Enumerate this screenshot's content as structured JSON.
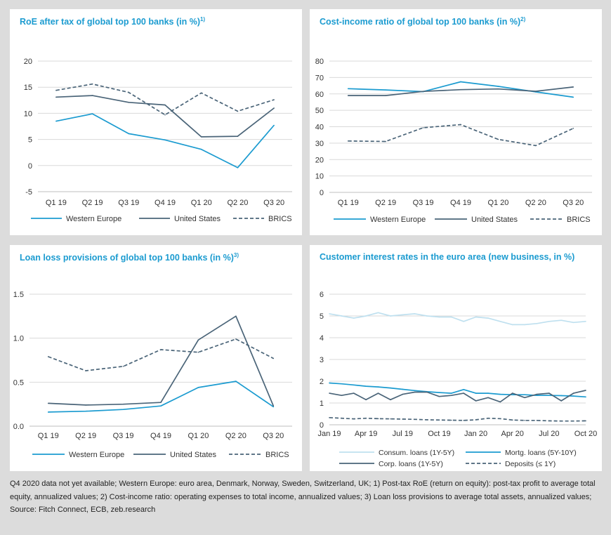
{
  "colors": {
    "western_europe": "#1b9bd0",
    "united_states": "#4a6478",
    "brics": "#4a6478",
    "consum": "#bfe0ef",
    "mortg": "#1b9bd0",
    "corp": "#4a6478",
    "deposits": "#4a6478",
    "grid": "#d9d9d9",
    "axis": "#bfbfbf",
    "title": "#1b9bd0"
  },
  "footnote": "Q4 2020 data not yet available; Western Europe: euro area, Denmark, Norway, Sweden, Switzerland, UK; 1) Post-tax RoE (return on equity): post-tax profit to average total equity, annualized values; 2) Cost-income ratio: operating expenses to total income, annualized values; 3) Loan loss provisions to average total assets, annualized values; Source: Fitch Connect, ECB, zeb.research",
  "chart_data": [
    {
      "type": "line",
      "title": "RoE after tax of global top 100 banks (in %)",
      "title_sup": "1)",
      "categories": [
        "Q1 19",
        "Q2 19",
        "Q3 19",
        "Q4 19",
        "Q1 20",
        "Q2 20",
        "Q3 20"
      ],
      "ylim": [
        -5,
        20
      ],
      "yticks": [
        "-5",
        "0",
        "5",
        "10",
        "15",
        "20"
      ],
      "ytick_values": [
        -5,
        0,
        5,
        10,
        15,
        20
      ],
      "grid": true,
      "legend": "bottom",
      "series": [
        {
          "name": "Western Europe",
          "values": [
            8.5,
            9.9,
            6.1,
            4.9,
            3.1,
            -0.4,
            7.7
          ],
          "style": "solid",
          "color_key": "western_europe"
        },
        {
          "name": "United States",
          "values": [
            13.1,
            13.4,
            12.1,
            11.6,
            5.5,
            5.6,
            11.0
          ],
          "style": "solid",
          "color_key": "united_states"
        },
        {
          "name": "BRICS",
          "values": [
            14.4,
            15.6,
            14.0,
            9.7,
            13.9,
            10.4,
            12.6
          ],
          "style": "dashed",
          "color_key": "brics"
        }
      ]
    },
    {
      "type": "line",
      "title": "Cost-income ratio of global top 100 banks (in %)",
      "title_sup": "2)",
      "categories": [
        "Q1 19",
        "Q2 19",
        "Q3 19",
        "Q4 19",
        "Q1 20",
        "Q2 20",
        "Q3 20"
      ],
      "ylim": [
        0,
        80
      ],
      "yticks": [
        "0",
        "10",
        "20",
        "30",
        "40",
        "50",
        "60",
        "70",
        "80"
      ],
      "ytick_values": [
        0,
        10,
        20,
        30,
        40,
        50,
        60,
        70,
        80
      ],
      "grid": true,
      "legend": "bottom",
      "series": [
        {
          "name": "Western Europe",
          "values": [
            63.2,
            62.4,
            61.4,
            67.4,
            64.6,
            61.2,
            58.0
          ],
          "style": "solid",
          "color_key": "western_europe"
        },
        {
          "name": "United States",
          "values": [
            59.0,
            59.0,
            61.5,
            62.6,
            63.0,
            61.6,
            64.2
          ],
          "style": "solid",
          "color_key": "united_states"
        },
        {
          "name": "BRICS",
          "values": [
            31.3,
            31.0,
            39.4,
            41.3,
            32.3,
            28.5,
            39.0
          ],
          "style": "dashed",
          "color_key": "brics"
        }
      ]
    },
    {
      "type": "line",
      "title": "Loan loss provisions of global top 100 banks (in %)",
      "title_sup": "3)",
      "categories": [
        "Q1 19",
        "Q2 19",
        "Q3 19",
        "Q4 19",
        "Q1 20",
        "Q2 20",
        "Q3 20"
      ],
      "ylim": [
        0,
        1.5
      ],
      "yticks": [
        "0.0",
        "0.5",
        "1.0",
        "1.5"
      ],
      "ytick_values": [
        0,
        0.5,
        1.0,
        1.5
      ],
      "grid": true,
      "legend": "bottom",
      "series": [
        {
          "name": "Western Europe",
          "values": [
            0.16,
            0.17,
            0.19,
            0.23,
            0.44,
            0.51,
            0.22
          ],
          "style": "solid",
          "color_key": "western_europe"
        },
        {
          "name": "United States",
          "values": [
            0.26,
            0.24,
            0.25,
            0.27,
            0.98,
            1.25,
            0.23
          ],
          "style": "solid",
          "color_key": "united_states"
        },
        {
          "name": "BRICS",
          "values": [
            0.79,
            0.63,
            0.68,
            0.87,
            0.84,
            0.99,
            0.77
          ],
          "style": "dashed",
          "color_key": "brics"
        }
      ]
    },
    {
      "type": "line",
      "title": "Customer interest rates in the euro area (new business, in %)",
      "title_sup": "",
      "x_tick_labels": [
        "Jan 19",
        "Apr 19",
        "Jul 19",
        "Oct 19",
        "Jan 20",
        "Apr 20",
        "Jul 20",
        "Oct 20"
      ],
      "ylim": [
        0,
        6
      ],
      "yticks": [
        "0",
        "1",
        "2",
        "3",
        "4",
        "5",
        "6"
      ],
      "ytick_values": [
        0,
        1,
        2,
        3,
        4,
        5,
        6
      ],
      "grid": true,
      "legend": "bottom",
      "series": [
        {
          "name": "Consum. loans (1Y-5Y)",
          "style": "solid",
          "color_key": "consum",
          "values": [
            5.1,
            5.0,
            4.9,
            5.0,
            5.15,
            5.0,
            5.05,
            5.1,
            5.0,
            4.95,
            4.95,
            4.75,
            4.95,
            4.9,
            4.75,
            4.6,
            4.6,
            4.65,
            4.75,
            4.8,
            4.7,
            4.75
          ]
        },
        {
          "name": "Mortg. loans (5Y-10Y)",
          "style": "solid",
          "color_key": "mortg",
          "values": [
            1.92,
            1.88,
            1.83,
            1.77,
            1.74,
            1.69,
            1.63,
            1.57,
            1.52,
            1.48,
            1.45,
            1.62,
            1.45,
            1.45,
            1.4,
            1.38,
            1.38,
            1.35,
            1.35,
            1.34,
            1.32,
            1.28
          ]
        },
        {
          "name": "Corp. loans (1Y-5Y)",
          "style": "solid",
          "color_key": "corp",
          "values": [
            1.45,
            1.35,
            1.45,
            1.15,
            1.45,
            1.15,
            1.4,
            1.5,
            1.5,
            1.3,
            1.35,
            1.45,
            1.1,
            1.25,
            1.05,
            1.45,
            1.25,
            1.4,
            1.45,
            1.1,
            1.45,
            1.58
          ]
        },
        {
          "name": "Deposits (≤ 1Y)",
          "style": "dashed",
          "color_key": "deposits",
          "values": [
            0.33,
            0.3,
            0.27,
            0.3,
            0.28,
            0.27,
            0.26,
            0.25,
            0.23,
            0.22,
            0.21,
            0.2,
            0.23,
            0.3,
            0.28,
            0.22,
            0.2,
            0.2,
            0.18,
            0.17,
            0.17,
            0.18
          ]
        }
      ]
    }
  ]
}
